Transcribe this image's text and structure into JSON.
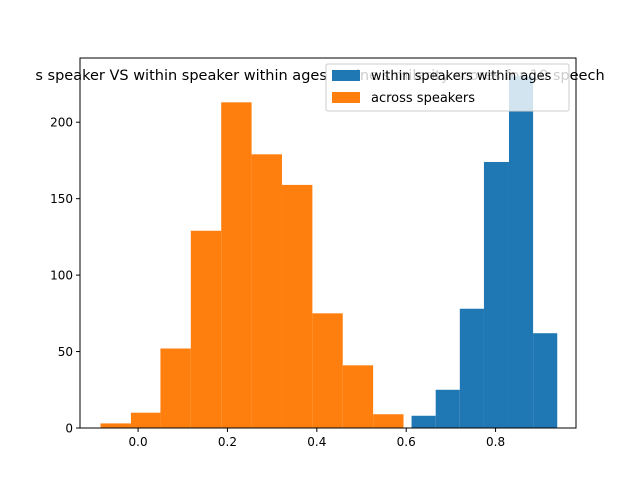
{
  "chart_data": {
    "type": "bar",
    "title": "s speaker VS within speaker within ages cosine similarity scores for 10 speech",
    "xlabel": "",
    "ylabel": "",
    "xlim": [
      -0.13,
      0.98
    ],
    "ylim": [
      0,
      242
    ],
    "xticks": [
      0.0,
      0.2,
      0.4,
      0.6,
      0.8
    ],
    "xtick_labels": [
      "0.0",
      "0.2",
      "0.4",
      "0.6",
      "0.8"
    ],
    "yticks": [
      0,
      50,
      100,
      150,
      200
    ],
    "ytick_labels": [
      "0",
      "50",
      "100",
      "150",
      "200"
    ],
    "grid": false,
    "legend_position": "top-right",
    "series": [
      {
        "name": "within speakers within ages",
        "color": "#1f77b4",
        "bins": [
          {
            "x0": 0.612,
            "x1": 0.666,
            "count": 8
          },
          {
            "x0": 0.666,
            "x1": 0.72,
            "count": 25
          },
          {
            "x0": 0.72,
            "x1": 0.774,
            "count": 78
          },
          {
            "x0": 0.774,
            "x1": 0.83,
            "count": 174
          },
          {
            "x0": 0.83,
            "x1": 0.884,
            "count": 230
          },
          {
            "x0": 0.884,
            "x1": 0.938,
            "count": 62
          }
        ]
      },
      {
        "name": "across speakers",
        "color": "#ff7f0e",
        "bins": [
          {
            "x0": -0.084,
            "x1": -0.016,
            "count": 3
          },
          {
            "x0": -0.016,
            "x1": 0.05,
            "count": 10
          },
          {
            "x0": 0.05,
            "x1": 0.118,
            "count": 52
          },
          {
            "x0": 0.118,
            "x1": 0.186,
            "count": 129
          },
          {
            "x0": 0.186,
            "x1": 0.254,
            "count": 213
          },
          {
            "x0": 0.254,
            "x1": 0.322,
            "count": 179
          },
          {
            "x0": 0.322,
            "x1": 0.39,
            "count": 159
          },
          {
            "x0": 0.39,
            "x1": 0.458,
            "count": 75
          },
          {
            "x0": 0.458,
            "x1": 0.526,
            "count": 41
          },
          {
            "x0": 0.526,
            "x1": 0.594,
            "count": 9
          }
        ]
      }
    ]
  }
}
